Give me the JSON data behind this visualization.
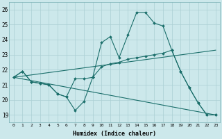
{
  "xlabel": "Humidex (Indice chaleur)",
  "ylabel": "",
  "xlim": [
    -0.5,
    23.5
  ],
  "ylim": [
    18.5,
    26.5
  ],
  "yticks": [
    19,
    20,
    21,
    22,
    23,
    24,
    25,
    26
  ],
  "xticks": [
    0,
    1,
    2,
    3,
    4,
    5,
    6,
    7,
    8,
    9,
    10,
    11,
    12,
    13,
    14,
    15,
    16,
    17,
    18,
    19,
    20,
    21,
    22,
    23
  ],
  "bg_color": "#cce8eb",
  "line_color": "#1a6e6a",
  "grid_color": "#aacfd4",
  "lines": [
    {
      "x": [
        0,
        1,
        2,
        3,
        4,
        5,
        6,
        7,
        8,
        9,
        10,
        11,
        12,
        13,
        14,
        15,
        16,
        17,
        18,
        19,
        20,
        21,
        22,
        23
      ],
      "y": [
        21.5,
        21.9,
        21.2,
        21.1,
        21.0,
        20.4,
        20.2,
        19.3,
        19.9,
        21.5,
        23.8,
        24.2,
        22.8,
        24.3,
        25.8,
        25.8,
        25.1,
        24.9,
        23.3,
        21.9,
        20.8,
        19.8,
        19.0,
        19.0
      ],
      "markers": true
    },
    {
      "x": [
        0,
        1,
        2,
        3,
        4,
        5,
        6,
        7,
        8,
        9,
        10,
        11,
        12,
        13,
        14,
        15,
        16,
        17,
        18,
        19,
        20,
        21,
        22,
        23
      ],
      "y": [
        21.5,
        21.9,
        21.2,
        21.1,
        21.0,
        20.4,
        20.2,
        21.4,
        21.4,
        21.5,
        22.2,
        22.4,
        22.5,
        22.7,
        22.8,
        22.9,
        23.0,
        23.1,
        23.3,
        21.9,
        20.8,
        19.8,
        19.0,
        19.0
      ],
      "markers": true
    },
    {
      "x": [
        0,
        23
      ],
      "y": [
        21.5,
        23.3
      ],
      "markers": false
    },
    {
      "x": [
        0,
        23
      ],
      "y": [
        21.5,
        19.0
      ],
      "markers": false
    }
  ]
}
